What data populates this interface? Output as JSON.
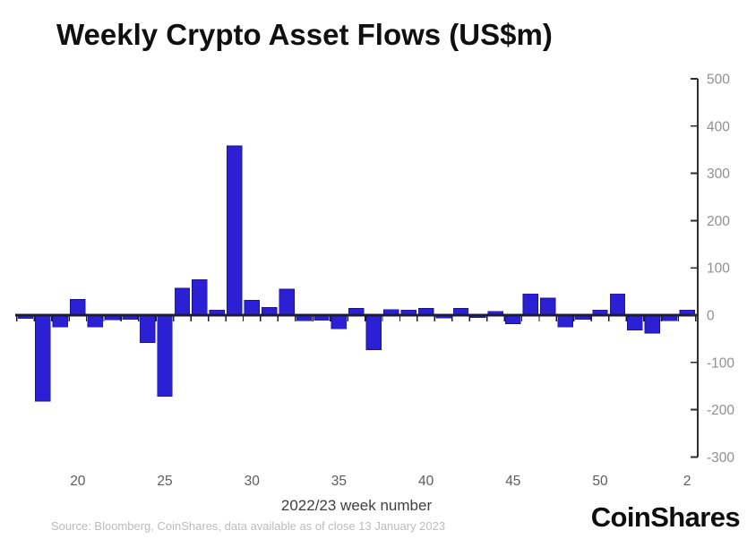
{
  "footer": {
    "source": "Source: Bloomberg, CoinShares, data available as of close 13 January 2023",
    "brand": "CoinShares"
  },
  "chart_data": {
    "type": "bar",
    "title": "Weekly Crypto Asset Flows (US$m)",
    "xlabel": "2022/23 week number",
    "ylabel": "",
    "categories": [
      "17",
      "18",
      "19",
      "20",
      "21",
      "22",
      "23",
      "24",
      "25",
      "26",
      "27",
      "28",
      "29",
      "30",
      "31",
      "32",
      "33",
      "34",
      "35",
      "36",
      "37",
      "38",
      "39",
      "40",
      "41",
      "42",
      "43",
      "44",
      "45",
      "46",
      "47",
      "48",
      "49",
      "50",
      "51",
      "52",
      "53",
      "1",
      "2"
    ],
    "values": [
      -7,
      -182,
      -25,
      33,
      -25,
      -10,
      -9,
      -58,
      -172,
      57,
      75,
      11,
      358,
      31,
      16,
      55,
      -12,
      -11,
      -29,
      14,
      -73,
      12,
      11,
      14,
      -6,
      14,
      -5,
      8,
      -18,
      45,
      36,
      -25,
      -9,
      11,
      45,
      -31,
      -38,
      -12,
      11
    ],
    "x_tick_labels": [
      "20",
      "25",
      "30",
      "35",
      "40",
      "45",
      "50",
      "2"
    ],
    "x_tick_indices": [
      3,
      8,
      13,
      18,
      23,
      28,
      33,
      38
    ],
    "y_ticks": [
      500,
      400,
      300,
      200,
      100,
      0,
      -100,
      -200,
      -300
    ],
    "ylim": [
      -300,
      500
    ],
    "grid": false,
    "legend": "none",
    "y_axis_side": "right",
    "colors": {
      "bar": "#2c20d4",
      "bar_edge": "#1a1390",
      "axis": "#1c1c36",
      "y_axis_line": "#2e2e2e",
      "y_tick_label": "#8f8f8f",
      "x_tick_label": "#5c5c5c"
    }
  }
}
